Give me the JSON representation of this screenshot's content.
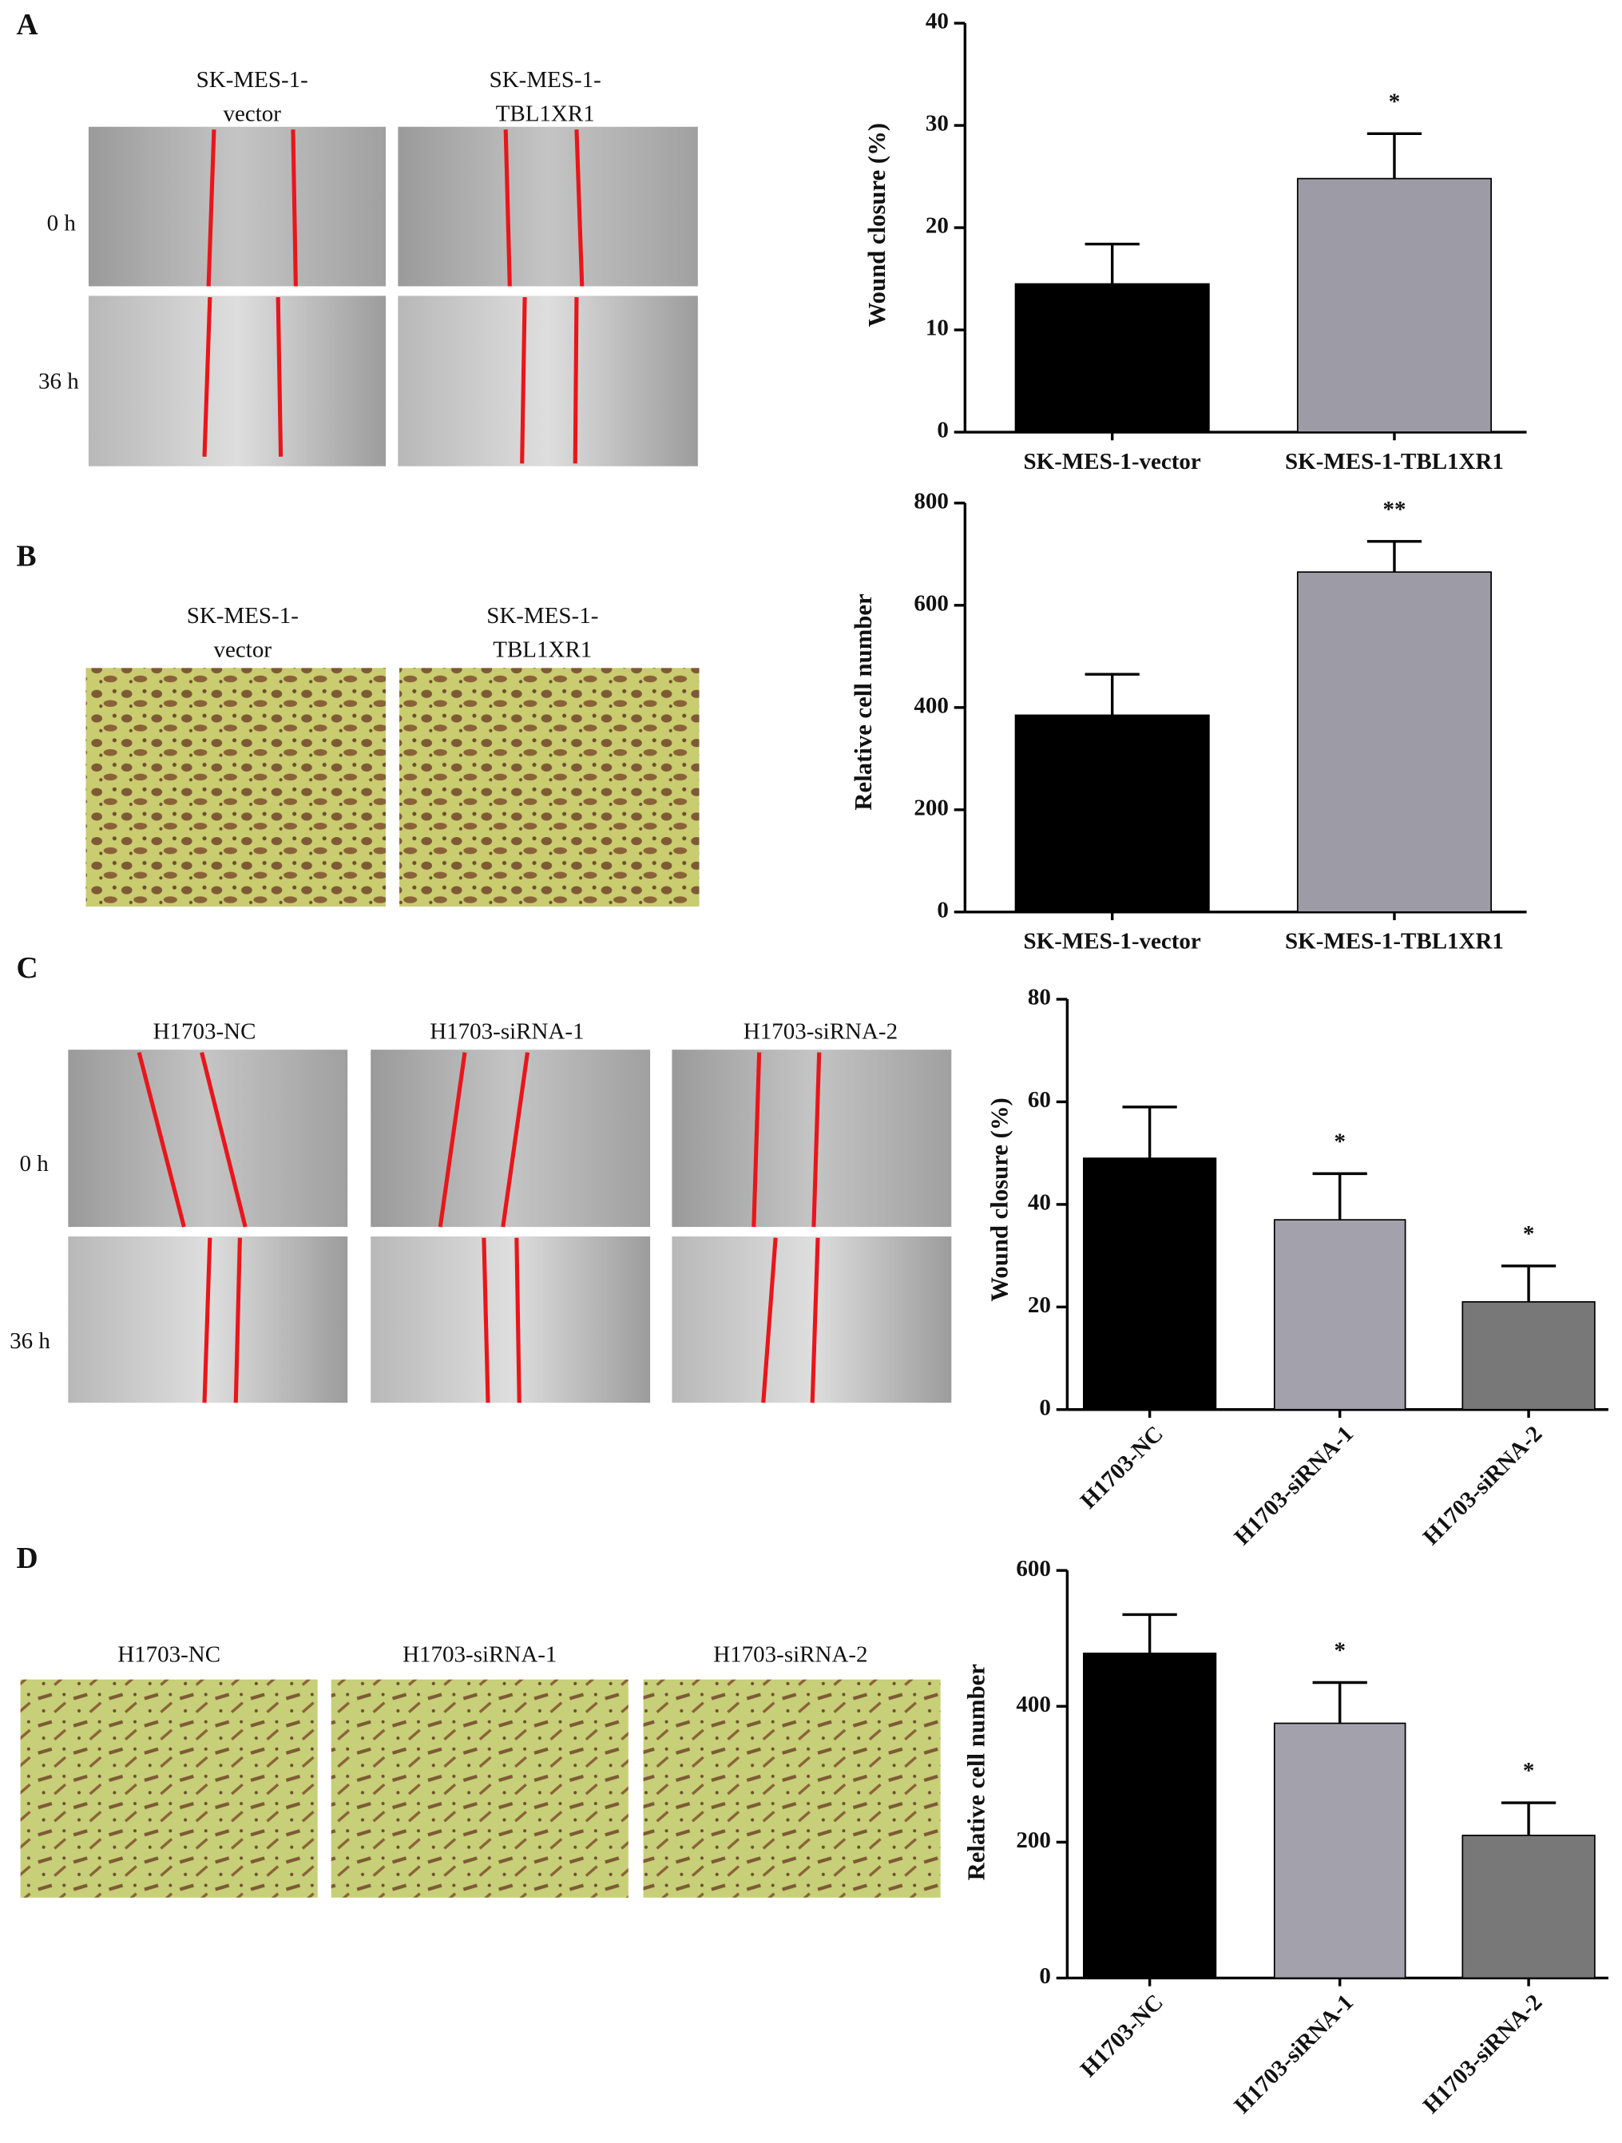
{
  "panels": [
    {
      "label": "A",
      "columns": [
        [
          "SK-MES-1-",
          "vector"
        ],
        [
          "SK-MES-1-",
          "TBL1XR1"
        ]
      ],
      "rows": [
        "0 h",
        "36 h"
      ]
    },
    {
      "label": "B",
      "columns": [
        [
          "SK-MES-1-",
          "vector"
        ],
        [
          "SK-MES-1-",
          "TBL1XR1"
        ]
      ]
    },
    {
      "label": "C",
      "columns": [
        "H1703-NC",
        "H1703-siRNA-1",
        "H1703-siRNA-2"
      ],
      "rows": [
        "0 h",
        "36 h"
      ]
    },
    {
      "label": "D",
      "columns": [
        "H1703-NC",
        "H1703-siRNA-1",
        "H1703-siRNA-2"
      ]
    }
  ],
  "chart_data": [
    {
      "type": "bar",
      "y_label": "Wound closure (%)",
      "categories": [
        "SK-MES-1-vector",
        "SK-MES-1-TBL1XR1"
      ],
      "values": [
        14.5,
        24.8
      ],
      "errors": [
        3.9,
        4.4
      ],
      "colors": [
        "#000000",
        "#9d9ca6"
      ],
      "significance": [
        null,
        "*"
      ],
      "ylim": [
        0,
        40
      ],
      "yticks": [
        0,
        10,
        20,
        30,
        40
      ]
    },
    {
      "type": "bar",
      "y_label": "Relative cell number",
      "categories": [
        "SK-MES-1-vector",
        "SK-MES-1-TBL1XR1"
      ],
      "values": [
        385,
        665
      ],
      "errors": [
        80,
        60
      ],
      "colors": [
        "#000000",
        "#9d9ca6"
      ],
      "significance": [
        null,
        "**"
      ],
      "ylim": [
        0,
        800
      ],
      "yticks": [
        0,
        200,
        400,
        600,
        800
      ]
    },
    {
      "type": "bar",
      "y_label": "Wound closure (%)",
      "categories": [
        "H1703-NC",
        "H1703-siRNA-1",
        "H1703-siRNA-2"
      ],
      "values": [
        49,
        37,
        21
      ],
      "errors": [
        10,
        9,
        7
      ],
      "colors": [
        "#000000",
        "#a3a2ac",
        "#787878"
      ],
      "significance": [
        null,
        "*",
        "*"
      ],
      "ylim": [
        0,
        80
      ],
      "yticks": [
        0,
        20,
        40,
        60,
        80
      ]
    },
    {
      "type": "bar",
      "y_label": "Relative cell number",
      "categories": [
        "H1703-NC",
        "H1703-siRNA-1",
        "H1703-siRNA-2"
      ],
      "values": [
        478,
        375,
        210
      ],
      "errors": [
        57,
        60,
        48
      ],
      "colors": [
        "#000000",
        "#a3a2ac",
        "#787878"
      ],
      "significance": [
        null,
        "*",
        "*"
      ],
      "ylim": [
        0,
        600
      ],
      "yticks": [
        0,
        200,
        400,
        600
      ]
    }
  ]
}
